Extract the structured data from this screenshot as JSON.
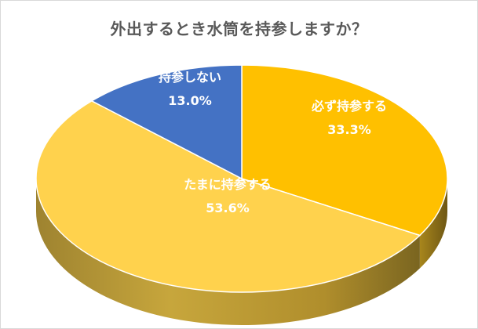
{
  "chart_data": {
    "type": "pie",
    "title": "外出するとき水筒を持参しますか？",
    "slices": [
      {
        "name": "必ず持参する",
        "label": "33.3%",
        "value": 33.3,
        "color": "#FFC000"
      },
      {
        "name": "たまに持参する",
        "label": "53.6%",
        "value": 53.6,
        "color": "#FFD24D"
      },
      {
        "name": "持参しない",
        "label": "13.0%",
        "value": 13.0,
        "color": "#4472C4"
      }
    ],
    "legend": "none",
    "style": "3d"
  }
}
